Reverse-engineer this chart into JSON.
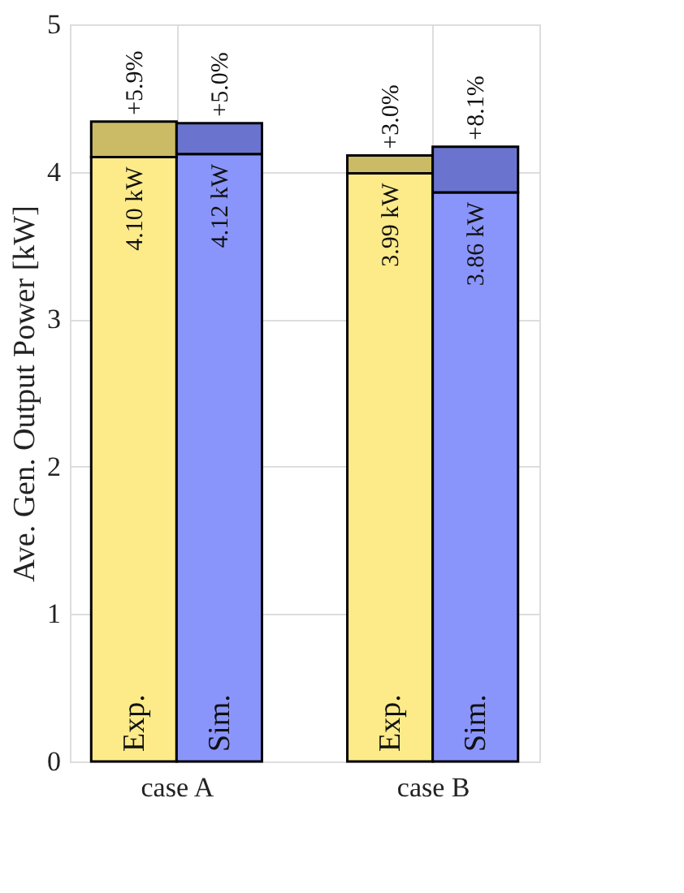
{
  "chart_data": {
    "type": "bar",
    "ylabel": "Ave. Gen. Output Power [kW]",
    "categories": [
      null,
      null,
      null,
      null
    ],
    "stacked": true,
    "series": [
      {
        "colors": [
          "#fdeb8a",
          "#8a95fc",
          "#fdeb8a",
          "#8a95fc"
        ],
        "values": [
          4.1,
          4.12,
          3.99,
          3.86
        ],
        "value_labels": [
          "4.10 kW",
          "4.12 kW",
          "3.99 kW",
          "3.86 kW"
        ]
      },
      {
        "colors": [
          "#cbbb66",
          "#6a74cf",
          "#cbbb66",
          "#6a74cf"
        ],
        "values": [
          0.24,
          0.21,
          0.12,
          0.31
        ]
      }
    ],
    "annotations": [
      "case A",
      "case B",
      "Exp.",
      "Sim.",
      "Exp.",
      "Sim.",
      {
        "text": "+5.9%",
        "y": 4.34
      },
      {
        "text": "+5.0%",
        "y": 4.33
      },
      {
        "text": "+3.0%",
        "y": 4.11
      },
      {
        "text": "+8.1%",
        "y": 4.17
      }
    ],
    "ylim": [
      0,
      5
    ],
    "yticks": [
      0,
      1,
      2,
      3,
      4,
      5
    ],
    "grid": true,
    "legend": false
  }
}
